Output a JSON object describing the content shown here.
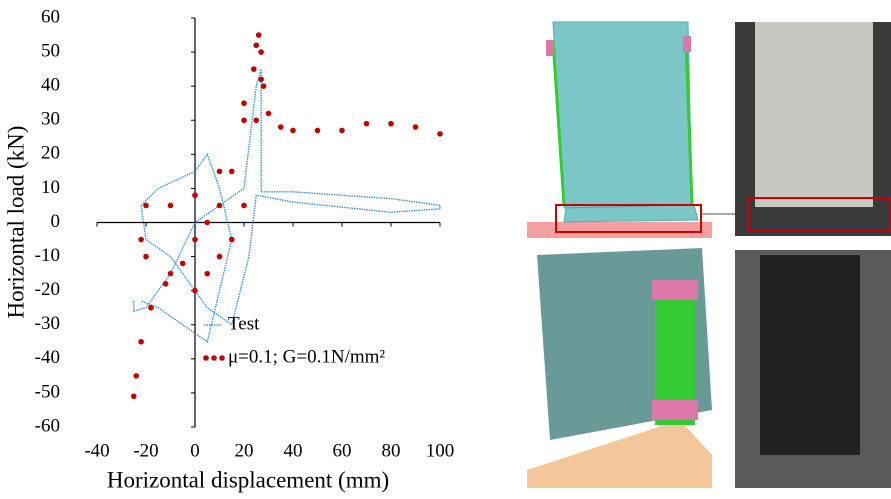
{
  "chart_data": {
    "type": "scatter",
    "xlabel": "Horizontal displacement (mm)",
    "ylabel": "Horizontal load (kN)",
    "xlim": [
      -40,
      100
    ],
    "xticks": [
      -40,
      -20,
      0,
      20,
      40,
      60,
      80,
      100
    ],
    "ylim": [
      -60,
      60
    ],
    "yticks": [
      -60,
      -50,
      -40,
      -30,
      -20,
      -10,
      0,
      10,
      20,
      30,
      40,
      50,
      60
    ],
    "series": [
      {
        "name": "Test",
        "color": "#3a8fd0",
        "style": "line",
        "x": [
          -25,
          -25,
          -20,
          -10,
          0,
          10,
          20,
          25,
          27,
          27,
          40,
          60,
          80,
          100,
          100,
          80,
          40,
          25,
          22,
          15,
          5,
          0,
          -10,
          -20,
          -22,
          -15,
          0,
          5,
          10,
          15,
          5,
          -5,
          -15,
          -22
        ],
        "values": [
          -23,
          -26,
          -25,
          -15,
          0,
          5,
          10,
          40,
          45,
          9,
          9,
          8,
          7,
          5,
          4,
          3,
          6,
          8,
          -10,
          -30,
          -25,
          -20,
          -10,
          -5,
          5,
          10,
          15,
          20,
          10,
          -5,
          -35,
          -30,
          -25,
          -23
        ]
      },
      {
        "name": "μ=0.1; G=0.1N/mm²",
        "color": "#c00000",
        "style": "dots",
        "x": [
          -25,
          -24,
          -22,
          -18,
          -12,
          -5,
          0,
          5,
          10,
          15,
          20,
          24,
          26,
          27,
          28,
          30,
          35,
          40,
          50,
          60,
          70,
          80,
          90,
          100,
          27,
          25,
          20,
          15,
          10,
          5,
          0,
          -10,
          -20,
          -22,
          -20,
          -10,
          0,
          10,
          20,
          25
        ],
        "values": [
          -51,
          -45,
          -35,
          -25,
          -18,
          -12,
          -5,
          0,
          5,
          15,
          30,
          45,
          55,
          50,
          40,
          32,
          28,
          27,
          27,
          27,
          29,
          29,
          28,
          26,
          42,
          30,
          5,
          -5,
          -10,
          -15,
          -20,
          -15,
          -10,
          -5,
          5,
          5,
          8,
          15,
          35,
          52
        ]
      }
    ]
  }
}
